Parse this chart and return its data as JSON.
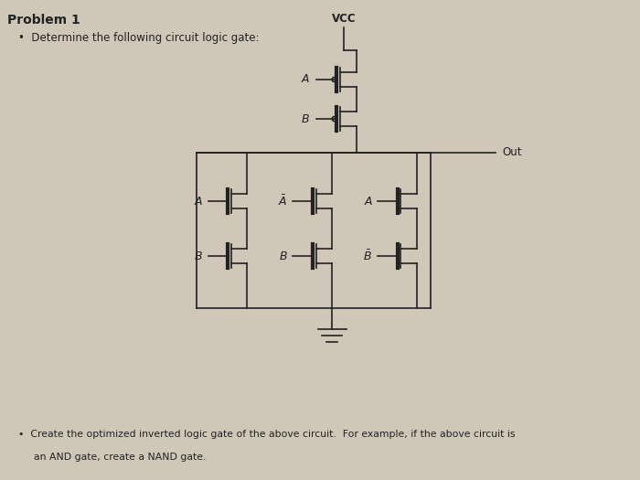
{
  "bg_color": "#cfc8b8",
  "text_color": "#222222",
  "line_color": "#222222",
  "title": "Problem 1",
  "bullet1": "Determine the following circuit logic gate:",
  "bullet2_line1": "Create the optimized inverted logic gate of the above circuit.  For example, if the above circuit is",
  "bullet2_line2": "an AND gate, create a NAND gate.",
  "vcc_label": "VCC",
  "out_label": "Out",
  "figsize": [
    7.0,
    5.25
  ],
  "dpi": 100
}
